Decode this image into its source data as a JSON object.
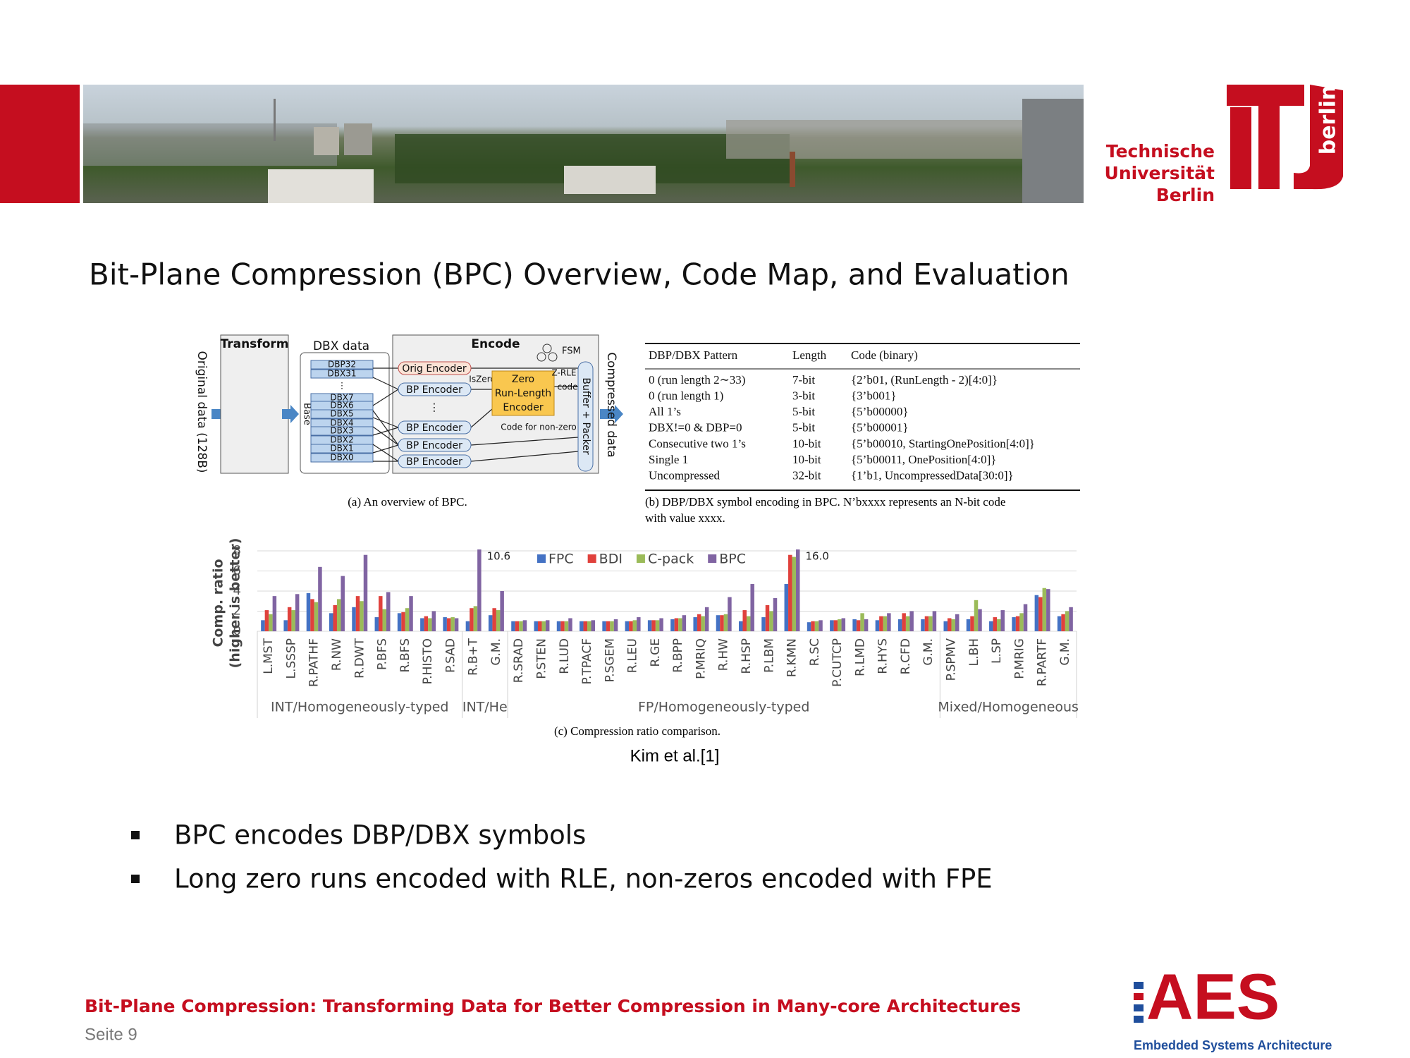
{
  "header": {
    "logo_lines": [
      "Technische",
      "Universität",
      "Berlin"
    ],
    "logo_mark": "berlin"
  },
  "title": "Bit-Plane Compression (BPC) Overview, Code Map, and Evaluation",
  "figure_a": {
    "transform": "Transform",
    "dbx_data": "DBX data",
    "encode": "Encode",
    "fsm": "FSM",
    "original": "Original data (128B)",
    "compressed": "Compressed data",
    "orig_encoder": "Orig Encoder",
    "bp_encoder": "BP Encoder",
    "dots": "⋮",
    "planes": [
      "DBP32",
      "DBX31",
      "⋮",
      "DBX7",
      "DBX6",
      "DBX5",
      "DBX4",
      "DBX3",
      "DBX2",
      "DBX1",
      "DBX0"
    ],
    "base": "Base",
    "iszero": "IsZero",
    "zre": [
      "Zero",
      "Run-Length",
      "Encoder"
    ],
    "zrle": [
      "Z-RLE",
      "code"
    ],
    "nonzero": "Code for non-zero",
    "packer": "Buffer + Packer"
  },
  "table": {
    "header": [
      "DBP/DBX Pattern",
      "Length",
      "Code (binary)"
    ],
    "rows": [
      [
        "0 (run length 2∼33)",
        "7-bit",
        "{2’b01, (RunLength - 2)[4:0]}"
      ],
      [
        "0 (run length 1)",
        "3-bit",
        "{3’b001}"
      ],
      [
        "All 1’s",
        "5-bit",
        "{5’b00000}"
      ],
      [
        "DBX!=0 & DBP=0",
        "5-bit",
        "{5’b00001}"
      ],
      [
        "Consecutive two 1’s",
        "10-bit",
        "{5’b00010, StartingOnePosition[4:0]}"
      ],
      [
        "Single 1",
        "10-bit",
        "{5’b00011, OnePosition[4:0]}"
      ],
      [
        "Uncompressed",
        "32-bit",
        "{1’b1, UncompressedData[30:0]}"
      ]
    ]
  },
  "captions": {
    "a": "(a) An overview of BPC.",
    "b": [
      "(b) DBP/DBX symbol encoding in BPC. N’bxxxx represents an N-bit code",
      "with value xxxx."
    ],
    "c": "(c) Compression ratio comparison."
  },
  "citation": "Kim et al.[1]",
  "chart_data": {
    "type": "bar",
    "y_label": [
      "Comp. ratio",
      "(higher is better)"
    ],
    "categories": [
      "L.MST",
      "L.SSSP",
      "R.PATHF",
      "R.NW",
      "R.DWT",
      "P.BFS",
      "R.BFS",
      "P.HISTO",
      "P.SAD",
      "R.B+T",
      "G.M.",
      "R.SRAD",
      "P.STEN",
      "R.LUD",
      "P.TPACF",
      "P.SGEM",
      "R.LEU",
      "R.GE",
      "R.BPP",
      "P.MRIQ",
      "R.HW",
      "R.HSP",
      "P.LBM",
      "R.KMN",
      "R.SC",
      "P.CUTCP",
      "R.LMD",
      "R.HYS",
      "R.CFD",
      "G.M.",
      "P.SPMV",
      "L.BH",
      "L.SP",
      "P.MRIG",
      "R.PARTF",
      "G.M."
    ],
    "groups": [
      "INT/Homogeneously-typed",
      "INT/He",
      "FP/Homogeneously-typed",
      "Mixed/Homogeneous"
    ],
    "series": [
      {
        "name": "FPC",
        "color": "#4472c4",
        "values": [
          1.1,
          1.1,
          3.8,
          1.8,
          2.4,
          1.4,
          1.8,
          1.3,
          1.4,
          1.0,
          1.6,
          1.0,
          1.0,
          1.0,
          1.0,
          1.0,
          1.0,
          1.1,
          1.2,
          1.4,
          1.6,
          1.0,
          1.4,
          4.7,
          0.9,
          1.1,
          1.2,
          1.1,
          1.2,
          1.2,
          1.0,
          1.2,
          1.0,
          1.4,
          3.6,
          1.5
        ]
      },
      {
        "name": "BDI",
        "color": "#e0413c",
        "values": [
          2.1,
          2.4,
          3.2,
          2.6,
          3.5,
          3.5,
          1.9,
          1.5,
          1.3,
          2.3,
          2.3,
          1.0,
          1.0,
          1.0,
          1.0,
          1.0,
          1.0,
          1.1,
          1.3,
          1.7,
          1.6,
          2.1,
          2.6,
          7.6,
          1.0,
          1.1,
          1.1,
          1.5,
          1.8,
          1.5,
          1.3,
          1.5,
          1.4,
          1.5,
          3.4,
          1.7
        ]
      },
      {
        "name": "C-pack",
        "color": "#9bbb59",
        "values": [
          1.7,
          2.1,
          2.9,
          3.2,
          3.0,
          2.2,
          2.3,
          1.3,
          1.4,
          2.5,
          2.1,
          1.0,
          1.0,
          1.0,
          1.0,
          1.0,
          1.1,
          1.1,
          1.3,
          1.5,
          1.7,
          1.5,
          2.0,
          7.4,
          1.0,
          1.2,
          1.8,
          1.5,
          1.5,
          1.5,
          1.2,
          3.1,
          1.2,
          1.8,
          4.3,
          2.0
        ]
      },
      {
        "name": "BPC",
        "color": "#8064a2",
        "values": [
          3.5,
          3.7,
          6.4,
          5.5,
          7.6,
          3.9,
          3.5,
          2.0,
          1.3,
          10.6,
          4.0,
          1.1,
          1.1,
          1.3,
          1.1,
          1.2,
          1.4,
          1.3,
          1.6,
          2.4,
          3.4,
          4.7,
          3.3,
          16.0,
          1.1,
          1.3,
          1.2,
          1.8,
          2.0,
          2.0,
          1.7,
          2.2,
          2.1,
          2.7,
          4.2,
          2.4
        ],
        "value_labels": [
          null,
          null,
          null,
          null,
          null,
          null,
          null,
          null,
          null,
          "10.6",
          null,
          null,
          null,
          null,
          null,
          null,
          null,
          null,
          null,
          null,
          null,
          null,
          null,
          "16.0",
          null,
          null,
          null,
          null,
          null,
          null,
          null,
          null,
          null,
          null,
          null,
          null
        ]
      }
    ],
    "ylim": [
      0,
      8
    ],
    "yticks": [
      0,
      2,
      4,
      6,
      8
    ],
    "grid": true
  },
  "bullets": [
    "BPC encodes DBP/DBX symbols",
    "Long zero runs encoded with RLE, non-zeros encoded with FPE"
  ],
  "footer": {
    "title": "Bit-Plane Compression: Transforming Data for Better Compression in Many-core Architectures",
    "page": "Seite 9"
  },
  "aes_logo": {
    "name": "AES",
    "subtitle": "Embedded Systems Architecture"
  }
}
